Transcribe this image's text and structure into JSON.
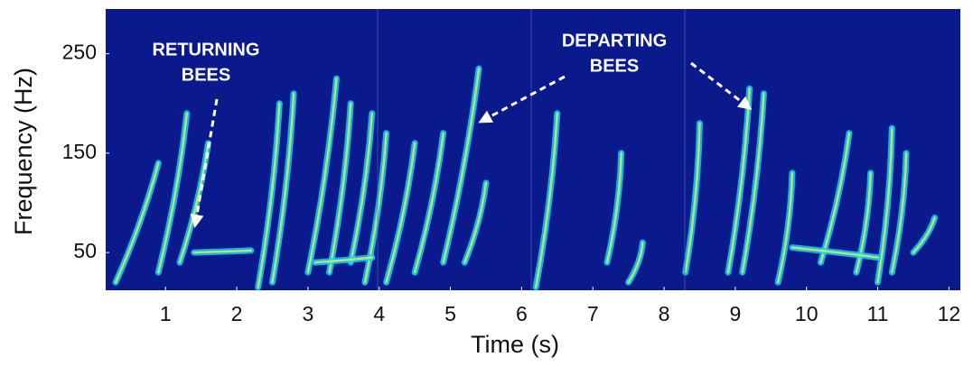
{
  "chart_data": {
    "type": "spectrogram",
    "xlabel": "Time (s)",
    "ylabel": "Frequency (Hz)",
    "xlim": [
      0.16,
      12.16
    ],
    "ylim": [
      12,
      295
    ],
    "xticks": [
      1,
      2,
      3,
      4,
      5,
      6,
      7,
      8,
      9,
      10,
      11,
      12
    ],
    "yticks": [
      50,
      150,
      250
    ],
    "background": "#0a1a8c",
    "color": "#00d8ff",
    "core_color": "#ffe24a",
    "annotations": [
      {
        "lines": [
          "RETURNING",
          "BEES"
        ]
      },
      {
        "lines": [
          "DEPARTING",
          "BEES"
        ]
      }
    ],
    "streaks": [
      {
        "x": [
          0.3,
          0.9
        ],
        "y": [
          20,
          140
        ]
      },
      {
        "x": [
          0.9,
          1.3
        ],
        "y": [
          30,
          190
        ]
      },
      {
        "x": [
          1.2,
          1.6
        ],
        "y": [
          40,
          160
        ]
      },
      {
        "x": [
          1.4,
          2.2
        ],
        "y": [
          50,
          52
        ]
      },
      {
        "x": [
          2.3,
          2.6
        ],
        "y": [
          15,
          200
        ]
      },
      {
        "x": [
          2.5,
          2.8
        ],
        "y": [
          20,
          210
        ]
      },
      {
        "x": [
          3.0,
          3.4
        ],
        "y": [
          30,
          225
        ]
      },
      {
        "x": [
          3.3,
          3.6
        ],
        "y": [
          30,
          200
        ]
      },
      {
        "x": [
          3.6,
          3.9
        ],
        "y": [
          40,
          190
        ]
      },
      {
        "x": [
          3.8,
          4.1
        ],
        "y": [
          20,
          170
        ]
      },
      {
        "x": [
          4.1,
          4.5
        ],
        "y": [
          20,
          160
        ]
      },
      {
        "x": [
          4.5,
          4.9
        ],
        "y": [
          30,
          170
        ]
      },
      {
        "x": [
          4.9,
          5.4
        ],
        "y": [
          40,
          235
        ]
      },
      {
        "x": [
          5.2,
          5.5
        ],
        "y": [
          40,
          120
        ]
      },
      {
        "x": [
          6.2,
          6.5
        ],
        "y": [
          15,
          190
        ]
      },
      {
        "x": [
          7.2,
          7.4
        ],
        "y": [
          40,
          150
        ]
      },
      {
        "x": [
          7.5,
          7.7
        ],
        "y": [
          20,
          60
        ]
      },
      {
        "x": [
          8.3,
          8.5
        ],
        "y": [
          30,
          180
        ]
      },
      {
        "x": [
          8.9,
          9.2
        ],
        "y": [
          30,
          215
        ]
      },
      {
        "x": [
          9.1,
          9.4
        ],
        "y": [
          30,
          210
        ]
      },
      {
        "x": [
          9.6,
          9.8
        ],
        "y": [
          20,
          130
        ]
      },
      {
        "x": [
          10.2,
          10.6
        ],
        "y": [
          40,
          170
        ]
      },
      {
        "x": [
          10.7,
          10.9
        ],
        "y": [
          30,
          130
        ]
      },
      {
        "x": [
          11.0,
          11.2
        ],
        "y": [
          20,
          175
        ]
      },
      {
        "x": [
          11.2,
          11.4
        ],
        "y": [
          30,
          150
        ]
      },
      {
        "x": [
          11.5,
          11.8
        ],
        "y": [
          50,
          85
        ]
      },
      {
        "x": [
          9.8,
          11.0
        ],
        "y": [
          55,
          45
        ]
      },
      {
        "x": [
          3.1,
          3.9
        ],
        "y": [
          40,
          45
        ]
      }
    ]
  }
}
